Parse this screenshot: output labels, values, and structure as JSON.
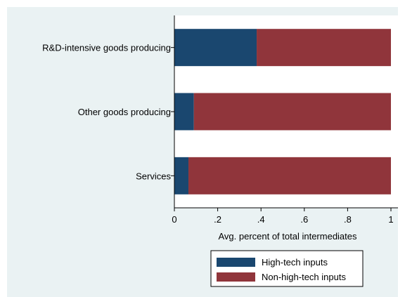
{
  "chart_data": {
    "type": "bar",
    "orientation": "horizontal",
    "stacked": true,
    "title": "",
    "xlabel": "Avg. percent of total intermediates",
    "ylabel": "",
    "categories": [
      "R&D-intensive goods producing",
      "Other goods producing",
      "Services"
    ],
    "xlim": [
      0,
      1
    ],
    "xticks": [
      {
        "value": 0,
        "label": "0"
      },
      {
        "value": 0.2,
        "label": ".2"
      },
      {
        "value": 0.4,
        "label": ".4"
      },
      {
        "value": 0.6,
        "label": ".6"
      },
      {
        "value": 0.8,
        "label": ".8"
      },
      {
        "value": 1,
        "label": "1"
      }
    ],
    "series": [
      {
        "name": "High-tech inputs",
        "color": "#1a476f",
        "values": [
          0.38,
          0.09,
          0.065
        ]
      },
      {
        "name": "Non-high-tech inputs",
        "color": "#90353b",
        "values": [
          0.62,
          0.91,
          0.935
        ]
      }
    ],
    "grid": false,
    "legend_position": "bottom",
    "background_color": "#eaf2f3",
    "plot_background_color": "#ffffff"
  }
}
